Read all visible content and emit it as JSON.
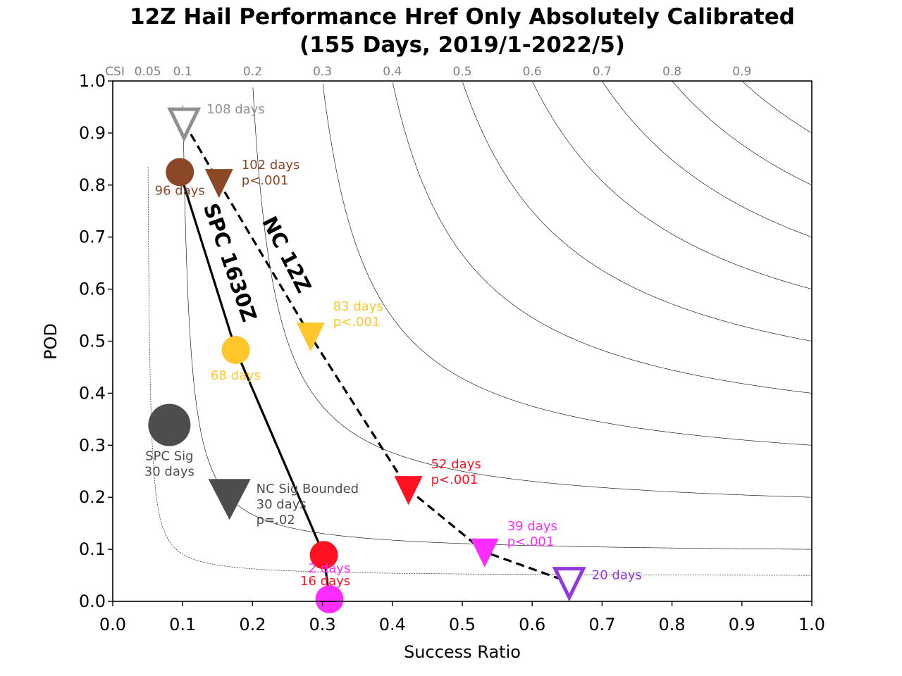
{
  "chart_data": {
    "type": "scatter",
    "title": [
      "12Z Hail Performance Href Only Absolutely Calibrated",
      "(155 Days, 2019/1-2022/5)"
    ],
    "xlabel": "Success Ratio",
    "ylabel": "POD",
    "xlim": [
      0,
      1
    ],
    "ylim": [
      0,
      1
    ],
    "xticks": [
      "0.0",
      "0.1",
      "0.2",
      "0.3",
      "0.4",
      "0.5",
      "0.6",
      "0.7",
      "0.8",
      "0.9",
      "1.0"
    ],
    "yticks": [
      "0.0",
      "0.1",
      "0.2",
      "0.3",
      "0.4",
      "0.5",
      "0.6",
      "0.7",
      "0.8",
      "0.9",
      "1.0"
    ],
    "csi_label": "CSI",
    "csi_levels": [
      0.05,
      0.1,
      0.2,
      0.3,
      0.4,
      0.5,
      0.6,
      0.7,
      0.8,
      0.9
    ],
    "csi_tick_labels": [
      "0.05",
      "0.1",
      "0.2",
      "0.3",
      "0.4",
      "0.5",
      "0.6",
      "0.7",
      "0.8",
      "0.9"
    ],
    "series": [
      {
        "name": "SPC 1630Z",
        "line_style": "solid",
        "marker": "circle",
        "points": [
          {
            "x": 0.096,
            "y": 0.825,
            "color": "#8B4726",
            "label": [
              "96 days"
            ]
          },
          {
            "x": 0.176,
            "y": 0.483,
            "color": "#FFC72C",
            "label": [
              "68 days"
            ]
          },
          {
            "x": 0.302,
            "y": 0.089,
            "color": "#FF1122",
            "label": [
              "16 days"
            ]
          },
          {
            "x": 0.31,
            "y": 0.004,
            "color": "#FF2BFF",
            "label": [
              "2 days"
            ]
          }
        ]
      },
      {
        "name": "NC 12Z",
        "line_style": "dashed",
        "marker": "triangle-down",
        "points": [
          {
            "x": 0.102,
            "y": 0.92,
            "color": "#909090",
            "hollow": true,
            "label": [
              "108 days"
            ]
          },
          {
            "x": 0.152,
            "y": 0.805,
            "color": "#8B4726",
            "label": [
              "102 days",
              "p<.001"
            ]
          },
          {
            "x": 0.283,
            "y": 0.51,
            "color": "#FFC72C",
            "label": [
              "83 days",
              "p<.001"
            ]
          },
          {
            "x": 0.423,
            "y": 0.215,
            "color": "#FF1122",
            "label": [
              "52 days",
              "p<.001"
            ]
          },
          {
            "x": 0.532,
            "y": 0.095,
            "color": "#FF2BFF",
            "label": [
              "39 days",
              "p<.001"
            ]
          },
          {
            "x": 0.653,
            "y": 0.037,
            "color": "#9238E3",
            "hollow": true,
            "label": [
              "20 days"
            ]
          }
        ]
      },
      {
        "name": "SPC Sig",
        "marker": "circle",
        "points": [
          {
            "x": 0.081,
            "y": 0.339,
            "color": "#4D4D4D",
            "label": [
              "SPC Sig",
              "30 days"
            ]
          }
        ]
      },
      {
        "name": "NC Sig Bounded",
        "marker": "triangle-down",
        "points": [
          {
            "x": 0.167,
            "y": 0.2,
            "color": "#4D4D4D",
            "label": [
              "NC Sig Bounded",
              "30 days",
              "p=.02"
            ]
          }
        ]
      }
    ],
    "colors": {
      "brown": "#8B4726",
      "yellow": "#FFC72C",
      "red": "#FF1122",
      "magenta": "#FF2BFF",
      "purple": "#9238E3",
      "gray": "#909090",
      "dark_gray": "#4D4D4D"
    }
  }
}
